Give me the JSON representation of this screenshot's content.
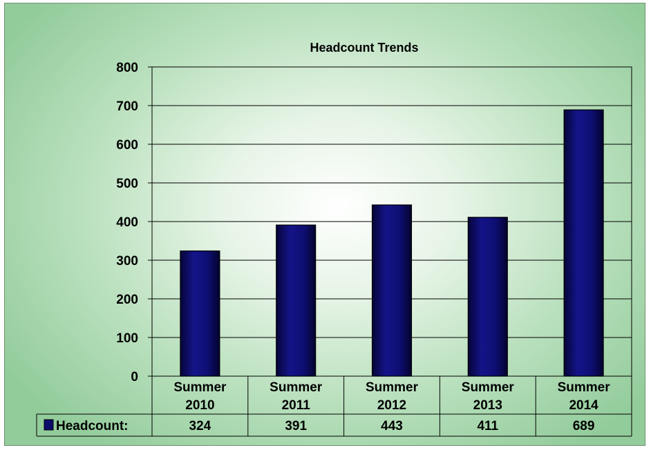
{
  "chart_data": {
    "type": "bar",
    "title": "Headcount Trends",
    "categories": [
      [
        "Summer",
        "2010"
      ],
      [
        "Summer",
        "2011"
      ],
      [
        "Summer",
        "2012"
      ],
      [
        "Summer",
        "2013"
      ],
      [
        "Summer",
        "2014"
      ]
    ],
    "series": [
      {
        "name": "Headcount:",
        "values": [
          324,
          391,
          443,
          411,
          689
        ],
        "color": "#0d0d6b"
      }
    ],
    "ylim": [
      0,
      800
    ],
    "yticks": [
      0,
      100,
      200,
      300,
      400,
      500,
      600,
      700,
      800
    ],
    "xlabel": "",
    "ylabel": "",
    "grid": true,
    "data_table": true,
    "legend": "data-table"
  }
}
